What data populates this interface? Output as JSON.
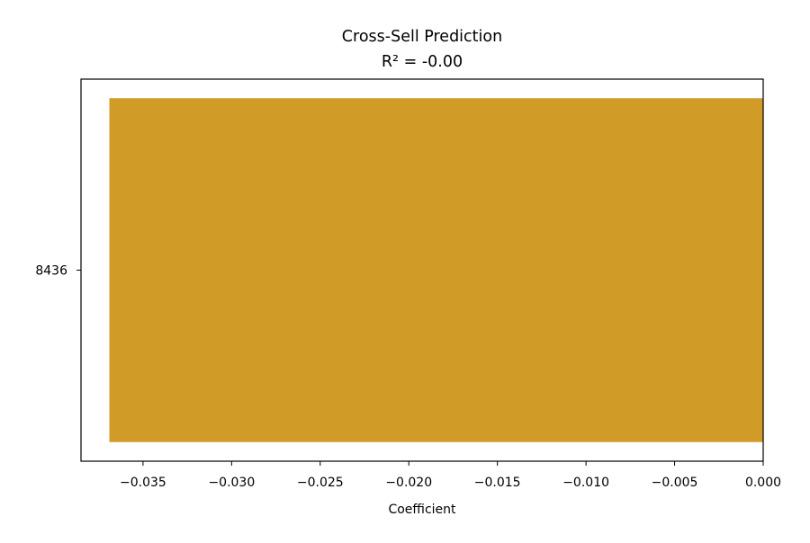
{
  "chart_data": {
    "type": "bar",
    "orientation": "horizontal",
    "title": "Cross-Sell Prediction",
    "subtitle": "R² = -0.00",
    "xlabel": "Coefficient",
    "ylabel": "",
    "categories": [
      "8436"
    ],
    "values": [
      -0.0369
    ],
    "xlim": [
      -0.0385,
      0.0
    ],
    "xticks": [
      -0.035,
      -0.03,
      -0.025,
      -0.02,
      -0.015,
      -0.01,
      -0.005,
      0.0
    ],
    "xtick_labels": [
      "−0.035",
      "−0.030",
      "−0.025",
      "−0.020",
      "−0.015",
      "−0.010",
      "−0.005",
      "0.000"
    ],
    "bar_color": "#d19b28",
    "grid": false,
    "legend": "none"
  }
}
